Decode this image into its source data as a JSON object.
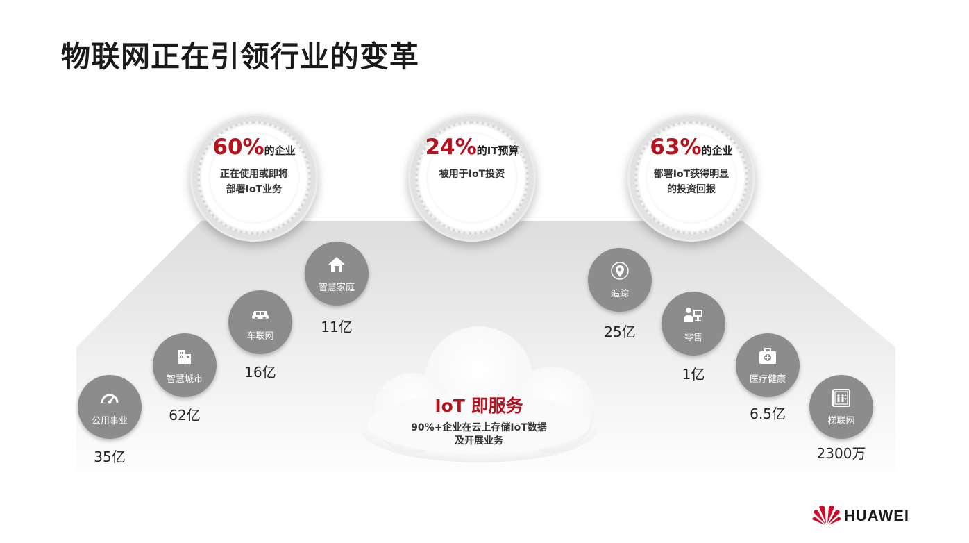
{
  "title": "物联网正在引领行业的变革",
  "stats": [
    {
      "big": "60%",
      "suffix": "的企业",
      "line1": "正在使用或即将",
      "line2": "部署IoT业务"
    },
    {
      "big": "24%",
      "suffix": "的IT预算",
      "line1": "被用于IoT投资",
      "line2": ""
    },
    {
      "big": "63%",
      "suffix": "的企业",
      "line1": "部署IoT获得明显",
      "line2": "的投资回报"
    }
  ],
  "categories": [
    {
      "label": "公用事业",
      "value": "35亿",
      "icon": "gauge-icon"
    },
    {
      "label": "智慧城市",
      "value": "62亿",
      "icon": "building-icon"
    },
    {
      "label": "车联网",
      "value": "16亿",
      "icon": "car-icon"
    },
    {
      "label": "智慧家庭",
      "value": "11亿",
      "icon": "home-icon"
    },
    {
      "label": "追踪",
      "value": "25亿",
      "icon": "location-pin-icon"
    },
    {
      "label": "零售",
      "value": "1亿",
      "icon": "cashier-icon"
    },
    {
      "label": "医疗健康",
      "value": "6.5亿",
      "icon": "medical-kit-icon"
    },
    {
      "label": "梯联网",
      "value": "2300万",
      "icon": "elevator-icon"
    }
  ],
  "cloud": {
    "title": "IoT 即服务",
    "line1": "90%+企业在云上存储IoT数据",
    "line2": "及开展业务"
  },
  "brand": {
    "name": "HUAWEI",
    "color": "#cf0a2c"
  },
  "colors": {
    "accent": "#b8111e",
    "circle": "#8c8c8c"
  }
}
